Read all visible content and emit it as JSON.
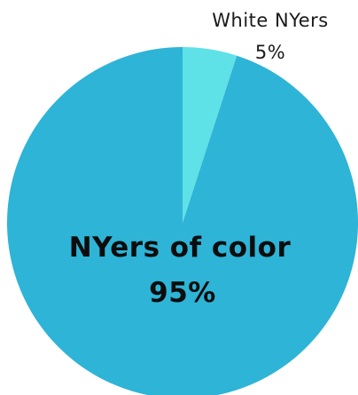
{
  "chart_data": {
    "type": "pie",
    "slices": [
      {
        "label": "NYers of color",
        "value": 95,
        "value_label": "95%",
        "color": "#2eb4d6"
      },
      {
        "label": "White NYers",
        "value": 5,
        "value_label": "5%",
        "color": "#5ee1e7"
      }
    ],
    "legend": "none"
  }
}
